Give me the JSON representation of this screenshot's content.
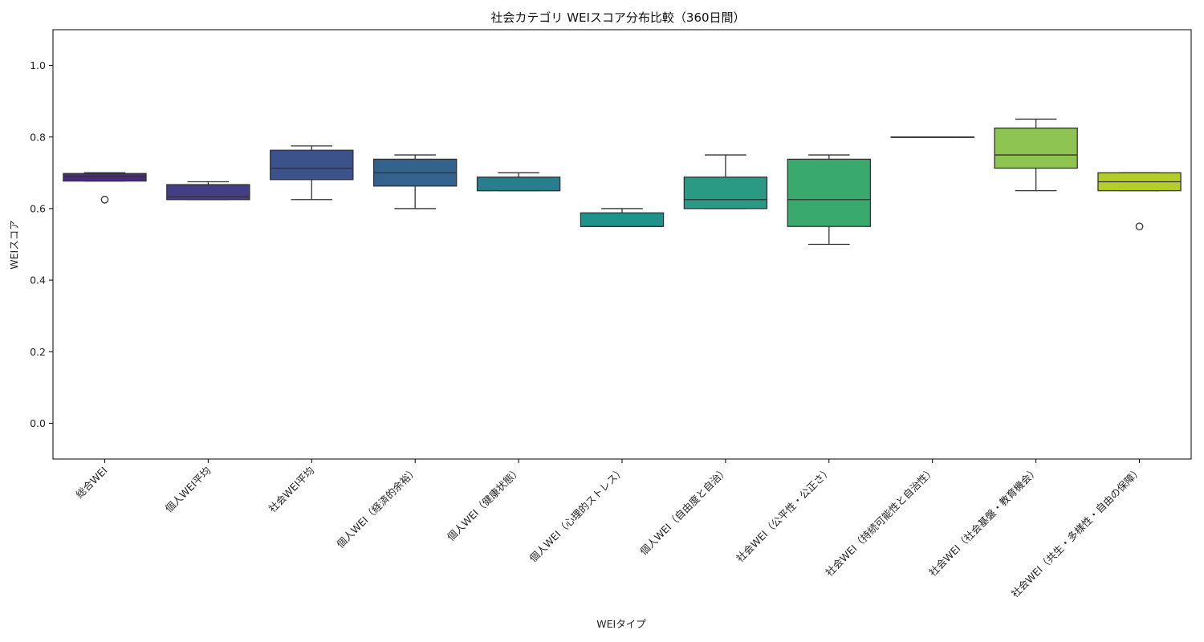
{
  "chart_data": {
    "type": "box",
    "title": "社会カテゴリ WEIスコア分布比較（360日間）",
    "xlabel": "WEIタイプ",
    "ylabel": "WEIスコア",
    "ylim": [
      -0.1,
      1.1
    ],
    "yticks": [
      0.0,
      0.2,
      0.4,
      0.6,
      0.8,
      1.0
    ],
    "ytick_labels": [
      "0.0",
      "0.2",
      "0.4",
      "0.6",
      "0.8",
      "1.0"
    ],
    "grid": false,
    "categories": [
      "総合WEI",
      "個人WEI平均",
      "社会WEI平均",
      "個人WEI（経済的余裕）",
      "個人WEI（健康状態）",
      "個人WEI（心理的ストレス）",
      "個人WEI（自由度と自治）",
      "社会WEI（公平性・公正さ）",
      "社会WEI（持続可能性と自治性）",
      "社会WEI（社会基盤・教育機会）",
      "社会WEI（共生・多様性・自由の保障）"
    ],
    "boxes": [
      {
        "whisker_low": 0.677,
        "q1": 0.677,
        "median": 0.69,
        "q3": 0.698,
        "whisker_high": 0.7,
        "outliers": [
          0.625
        ],
        "color": "#472d7b"
      },
      {
        "whisker_low": 0.625,
        "q1": 0.625,
        "median": 0.633,
        "q3": 0.667,
        "whisker_high": 0.675,
        "outliers": [],
        "color": "#433e85"
      },
      {
        "whisker_low": 0.625,
        "q1": 0.681,
        "median": 0.713,
        "q3": 0.763,
        "whisker_high": 0.775,
        "outliers": [],
        "color": "#3b528b"
      },
      {
        "whisker_low": 0.6,
        "q1": 0.663,
        "median": 0.7,
        "q3": 0.738,
        "whisker_high": 0.75,
        "outliers": [],
        "color": "#33638d"
      },
      {
        "whisker_low": 0.65,
        "q1": 0.65,
        "median": 0.65,
        "q3": 0.688,
        "whisker_high": 0.7,
        "outliers": [],
        "color": "#287d8e"
      },
      {
        "whisker_low": 0.55,
        "q1": 0.55,
        "median": 0.55,
        "q3": 0.588,
        "whisker_high": 0.6,
        "outliers": [],
        "color": "#21918c"
      },
      {
        "whisker_low": 0.6,
        "q1": 0.6,
        "median": 0.625,
        "q3": 0.688,
        "whisker_high": 0.75,
        "outliers": [],
        "color": "#2a9a84"
      },
      {
        "whisker_low": 0.5,
        "q1": 0.55,
        "median": 0.625,
        "q3": 0.738,
        "whisker_high": 0.75,
        "outliers": [],
        "color": "#3aa96e"
      },
      {
        "whisker_low": 0.8,
        "q1": 0.8,
        "median": 0.8,
        "q3": 0.8,
        "whisker_high": 0.8,
        "outliers": [],
        "color": "#6ece58"
      },
      {
        "whisker_low": 0.65,
        "q1": 0.713,
        "median": 0.75,
        "q3": 0.825,
        "whisker_high": 0.85,
        "outliers": [],
        "color": "#8dc452"
      },
      {
        "whisker_low": 0.65,
        "q1": 0.65,
        "median": 0.675,
        "q3": 0.7,
        "whisker_high": 0.7,
        "outliers": [
          0.55
        ],
        "color": "#b5cd2a"
      }
    ]
  }
}
